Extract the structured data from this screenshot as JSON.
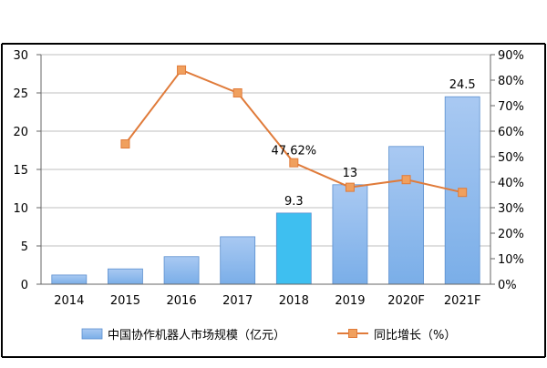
{
  "chart_data": {
    "type": "bar",
    "categories": [
      "2014",
      "2015",
      "2016",
      "2017",
      "2018",
      "2019",
      "2020F",
      "2021F"
    ],
    "series": [
      {
        "name": "中国协作机器人市场规模（亿元）",
        "type": "bar",
        "axis": "left",
        "values": [
          1.2,
          2.0,
          3.6,
          6.2,
          9.3,
          13,
          18,
          24.5
        ],
        "highlight_index": 4
      },
      {
        "name": "同比增长（%）",
        "type": "line",
        "axis": "right",
        "values": [
          null,
          55,
          84,
          75,
          47.62,
          38,
          41,
          36
        ]
      }
    ],
    "data_labels": [
      {
        "series": 0,
        "index": 4,
        "text": "9.3"
      },
      {
        "series": 0,
        "index": 5,
        "text": "13"
      },
      {
        "series": 0,
        "index": 7,
        "text": "24.5"
      },
      {
        "series": 1,
        "index": 4,
        "text": "47.62%"
      }
    ],
    "y_left": {
      "min": 0,
      "max": 30,
      "ticks": [
        "0",
        "5",
        "10",
        "15",
        "20",
        "25",
        "30"
      ]
    },
    "y_right": {
      "min": 0,
      "max": 90,
      "ticks": [
        "0%",
        "10%",
        "20%",
        "30%",
        "40%",
        "50%",
        "60%",
        "70%",
        "80%",
        "90%"
      ]
    },
    "grid": true,
    "legend_position": "bottom",
    "colors": {
      "bar": "#7aaee8",
      "bar_top": "#a9c9f2",
      "bar_highlight": "#3ebff0",
      "line": "#e07b3a",
      "marker_fill": "#f0a05e",
      "grid": "#bfbfbf",
      "frame": "#000000"
    }
  }
}
